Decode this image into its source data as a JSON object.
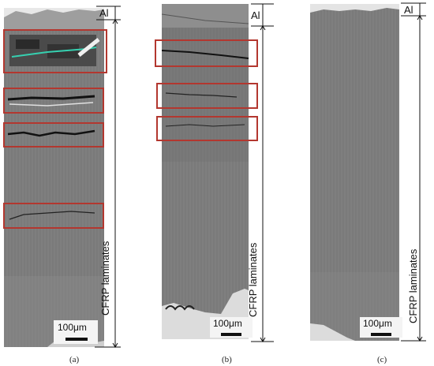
{
  "panels": [
    {
      "caption": "(a)",
      "al_label": "Al",
      "layer_label": "CFRP laminates",
      "scale_bar": "100μm"
    },
    {
      "caption": "(b)",
      "al_label": "Al",
      "layer_label": "CFRP laminates",
      "scale_bar": "100μm"
    },
    {
      "caption": "(c)",
      "al_label": "Al",
      "layer_label": "CFRP laminates",
      "scale_bar": "100μm"
    }
  ],
  "colors": {
    "highlight_box": "#b3372f",
    "sample": "#7a7a7a",
    "background": "#ffffff"
  }
}
